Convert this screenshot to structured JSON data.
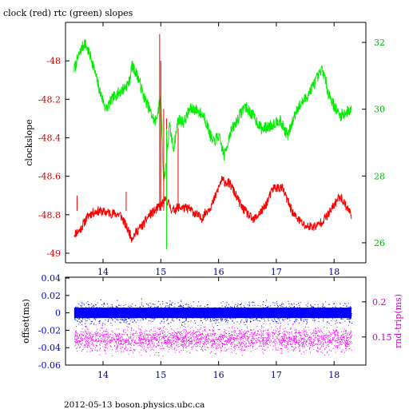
{
  "chart_data": [
    {
      "type": "line",
      "title": "clock (red) rtc (green) slopes",
      "xlabel": "",
      "ylabel": "clockslope",
      "xlim": [
        13.35,
        18.55
      ],
      "ylim": [
        -49.05,
        -47.8
      ],
      "y2lim": [
        25.4,
        32.6
      ],
      "x_ticks": [
        14,
        15,
        16,
        17,
        18
      ],
      "x_tick_labels": [
        "14",
        "15",
        "16",
        "17",
        "18"
      ],
      "y_ticks": [
        -48,
        -48.2,
        -48.4,
        -48.6,
        -48.8,
        -49
      ],
      "y_tick_labels": [
        "-48",
        "-48.2",
        "-48.4",
        "-48.6",
        "-48.8",
        "-49"
      ],
      "y2_ticks": [
        32,
        30,
        28,
        26
      ],
      "y2_tick_labels": [
        "32",
        "30",
        "28",
        "26"
      ],
      "grid": false,
      "series": [
        {
          "name": "clock",
          "axis": "left",
          "color": "#ff0000",
          "x": [
            13.5,
            13.6,
            13.75,
            13.9,
            14.1,
            14.3,
            14.5,
            14.6,
            14.7,
            14.8,
            14.9,
            15.0,
            15.1,
            15.2,
            15.3,
            15.5,
            15.7,
            15.9,
            16.05,
            16.2,
            16.4,
            16.6,
            16.8,
            16.95,
            17.1,
            17.3,
            17.5,
            17.7,
            17.9,
            18.1,
            18.3
          ],
          "y": [
            -48.9,
            -48.88,
            -48.8,
            -48.78,
            -48.79,
            -48.8,
            -48.92,
            -48.88,
            -48.85,
            -48.8,
            -48.78,
            -48.75,
            -48.72,
            -48.78,
            -48.76,
            -48.77,
            -48.82,
            -48.74,
            -48.62,
            -48.64,
            -48.76,
            -48.83,
            -48.76,
            -48.66,
            -48.66,
            -48.8,
            -48.86,
            -48.86,
            -48.8,
            -48.7,
            -48.8
          ]
        },
        {
          "name": "rtc",
          "axis": "right",
          "color": "#00ee00",
          "x": [
            13.5,
            13.6,
            13.68,
            13.8,
            13.95,
            14.05,
            14.2,
            14.35,
            14.45,
            14.5,
            14.6,
            14.7,
            14.8,
            14.9,
            15.0,
            15.05,
            15.1,
            15.15,
            15.22,
            15.3,
            15.4,
            15.5,
            15.6,
            15.75,
            15.9,
            16.0,
            16.1,
            16.2,
            16.3,
            16.45,
            16.6,
            16.75,
            16.9,
            17.05,
            17.2,
            17.35,
            17.5,
            17.6,
            17.7,
            17.8,
            17.9,
            18.0,
            18.1,
            18.2,
            18.3
          ],
          "y": [
            31.2,
            31.7,
            32.0,
            31.5,
            30.5,
            30.0,
            30.4,
            30.6,
            30.8,
            31.3,
            31.0,
            30.4,
            30.0,
            29.6,
            30.3,
            27.8,
            28.5,
            29.5,
            28.8,
            29.7,
            29.6,
            30.0,
            30.0,
            29.8,
            29.0,
            29.2,
            28.6,
            29.3,
            29.6,
            30.1,
            29.8,
            29.4,
            29.5,
            29.7,
            29.2,
            30.0,
            30.3,
            30.6,
            30.9,
            31.2,
            30.5,
            30.1,
            29.8,
            29.9,
            30.0
          ]
        }
      ]
    },
    {
      "type": "scatter",
      "xlabel": "",
      "ylabel": "offset(ms)",
      "y2label": "rnd-trip(ms)",
      "xlim": [
        13.35,
        18.55
      ],
      "ylim": [
        -0.06,
        0.041
      ],
      "y2lim": [
        0.11,
        0.235
      ],
      "x_ticks": [
        14,
        15,
        16,
        17,
        18
      ],
      "x_tick_labels": [
        "14",
        "15",
        "16",
        "17",
        "18"
      ],
      "y_ticks": [
        0.04,
        0.02,
        0,
        -0.02,
        -0.04,
        -0.06
      ],
      "y_tick_labels": [
        "0.04",
        "0.02",
        "0",
        "-0.02",
        "-0.04",
        "-0.06"
      ],
      "y2_ticks": [
        0.2,
        0.15
      ],
      "y2_tick_labels": [
        "0.2",
        "0.15"
      ],
      "grid": false,
      "series": [
        {
          "name": "offset",
          "axis": "left",
          "color": "#0000ff",
          "x_range": [
            13.5,
            18.3
          ],
          "y_center": 0.0,
          "y_spread": 0.012
        },
        {
          "name": "rnd-trip",
          "axis": "right",
          "color": "#ff00ff",
          "x_range": [
            13.5,
            18.3
          ],
          "y_center": 0.147,
          "y_spread": 0.018
        }
      ]
    }
  ],
  "footer": {
    "caption": "2012-05-13 boson.physics.ubc.ca"
  }
}
